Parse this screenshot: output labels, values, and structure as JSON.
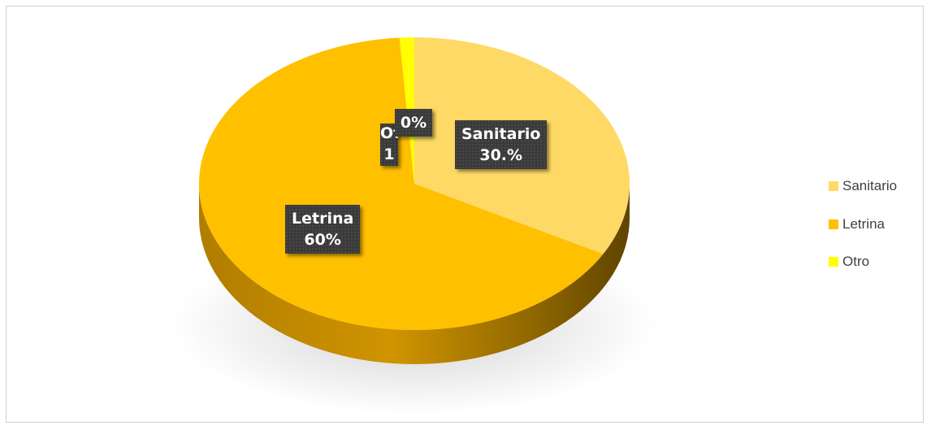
{
  "chart_data": {
    "type": "pie",
    "style": "3d",
    "categories": [
      "Sanitario",
      "Letrina",
      "Otro"
    ],
    "values": [
      30,
      60,
      1
    ],
    "colors": [
      "#FFD966",
      "#FFC000",
      "#FFFF00"
    ],
    "data_labels": [
      {
        "category": "Sanitario",
        "value_text": "30.%"
      },
      {
        "category": "Letrina",
        "value_text": "60%"
      },
      {
        "category": "Otro",
        "category_text": "Ot",
        "value_text": "1",
        "extra_value_text": "0%"
      }
    ],
    "legend": {
      "position": "right",
      "entries": [
        "Sanitario",
        "Letrina",
        "Otro"
      ]
    },
    "title": ""
  }
}
